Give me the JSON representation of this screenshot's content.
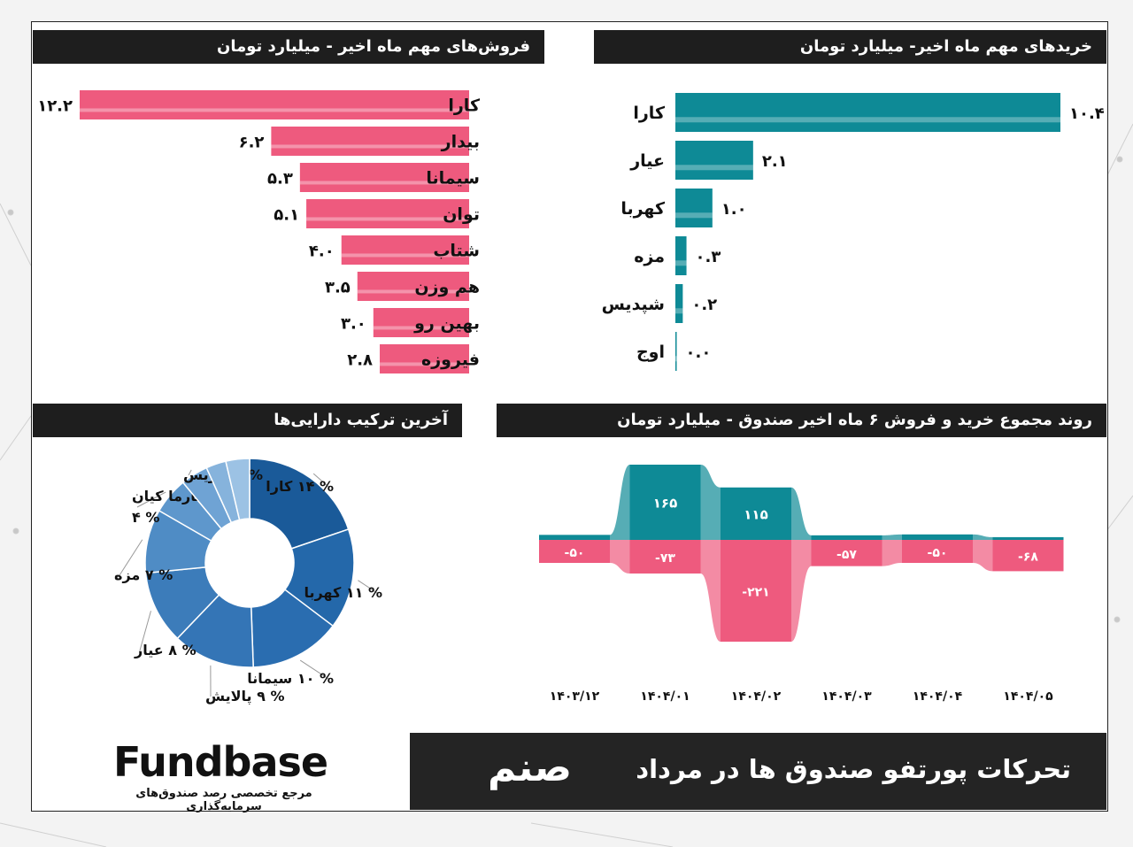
{
  "colors": {
    "teal": "#0e8a96",
    "pink": "#ee5a7e",
    "blue_dark": "#1a5a99",
    "blue": "#2d6db0",
    "blue_light": "#6fa3d4",
    "title_bg": "#1e1e1e"
  },
  "sales_chart": {
    "title": "فروش‌های مهم ماه اخیر - میلیارد تومان",
    "chart_data": {
      "type": "bar",
      "categories": [
        "کارا",
        "بیدار",
        "سیمانا",
        "توان",
        "شتاب",
        "هم وزن",
        "بهین رو",
        "فیروزه"
      ],
      "values": [
        12.2,
        6.2,
        5.3,
        5.1,
        4.0,
        3.5,
        3.0,
        2.8
      ],
      "value_labels": [
        "۱۲.۲",
        "۶.۲",
        "۵.۳",
        "۵.۱",
        "۴.۰",
        "۳.۵",
        "۳.۰",
        "۲.۸"
      ],
      "ylim": [
        0,
        12.2
      ]
    }
  },
  "buys_chart": {
    "title": "خریدهای مهم ماه اخیر- میلیارد تومان",
    "chart_data": {
      "type": "bar",
      "categories": [
        "کارا",
        "عیار",
        "کهربا",
        "مزه",
        "شپدیس",
        "اوج"
      ],
      "values": [
        10.4,
        2.1,
        1.0,
        0.3,
        0.2,
        0.0
      ],
      "value_labels": [
        "۱۰.۴",
        "۲.۱",
        "۱.۰",
        "۰.۳",
        "۰.۲",
        "۰.۰"
      ],
      "ylim": [
        0,
        10.4
      ]
    }
  },
  "donut_chart": {
    "title": "آخرین ترکیب دارایی‌ها",
    "chart_data": {
      "type": "pie",
      "labels": [
        "% ۱۴ کارا",
        "% ۱۱ کهربا",
        "% ۱۰ سیمانا",
        "% ۹ پالایش",
        "% ۸ عیار",
        "% ۷ مزه",
        "فارما کیان|% ۴",
        "% ۳ کاریس",
        "",
        ""
      ],
      "values": [
        14,
        11,
        10,
        9,
        8,
        7,
        4,
        3,
        2.2,
        2.6
      ],
      "colors": [
        "#1a5a99",
        "#2468aa",
        "#2a6db0",
        "#3475b6",
        "#3c7cba",
        "#4f8cc5",
        "#5e97cc",
        "#6fa3d4",
        "#86b3dc",
        "#9cc2e4"
      ]
    }
  },
  "trend_chart": {
    "title": "روند مجموع خرید و فروش ۶ ماه اخیر صندوق - میلیارد تومان",
    "chart_data": {
      "type": "bar",
      "categories": [
        "۱۴۰۳/۱۲",
        "۱۴۰۴/۰۱",
        "۱۴۰۴/۰۲",
        "۱۴۰۴/۰۳",
        "۱۴۰۴/۰۴",
        "۱۴۰۴/۰۵"
      ],
      "series": [
        {
          "name": "",
          "values": [
            11,
            165,
            115,
            10,
            12,
            6
          ],
          "labels": [
            "",
            "۱۶۵",
            "۱۱۵",
            "",
            "",
            ""
          ]
        },
        {
          "name": "",
          "values": [
            -50,
            -73,
            -221,
            -57,
            -50,
            -68
          ],
          "labels": [
            "-۵۰",
            "-۷۳",
            "-۲۲۱",
            "-۵۷",
            "-۵۰",
            "-۶۸"
          ]
        }
      ],
      "ylim": [
        -221,
        165
      ]
    }
  },
  "footer": {
    "title": "تحرکات پورتفو صندوق ها در مرداد",
    "fund_name": "صنم"
  },
  "logo": {
    "brand": "Fundbase",
    "tagline": "مرجع تخصصی رصد صندوق‌های سرمایه‌گذاری"
  }
}
